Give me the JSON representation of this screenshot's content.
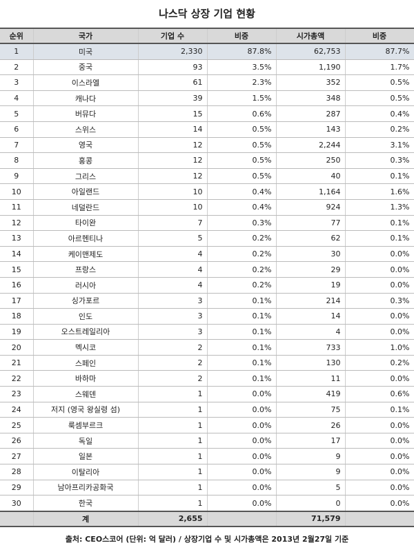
{
  "header": {
    "title": "나스닥 상장 기업 현황"
  },
  "table": {
    "columns": [
      "순위",
      "국가",
      "기업 수",
      "비중",
      "시가총액",
      "비중"
    ],
    "rows": [
      [
        "1",
        "미국",
        "2,330",
        "87.8%",
        "62,753",
        "87.7%"
      ],
      [
        "2",
        "중국",
        "93",
        "3.5%",
        "1,190",
        "1.7%"
      ],
      [
        "3",
        "이스라엘",
        "61",
        "2.3%",
        "352",
        "0.5%"
      ],
      [
        "4",
        "캐나다",
        "39",
        "1.5%",
        "348",
        "0.5%"
      ],
      [
        "5",
        "버뮤다",
        "15",
        "0.6%",
        "287",
        "0.4%"
      ],
      [
        "6",
        "스위스",
        "14",
        "0.5%",
        "143",
        "0.2%"
      ],
      [
        "7",
        "영국",
        "12",
        "0.5%",
        "2,244",
        "3.1%"
      ],
      [
        "8",
        "홍콩",
        "12",
        "0.5%",
        "250",
        "0.3%"
      ],
      [
        "9",
        "그리스",
        "12",
        "0.5%",
        "40",
        "0.1%"
      ],
      [
        "10",
        "아일랜드",
        "10",
        "0.4%",
        "1,164",
        "1.6%"
      ],
      [
        "11",
        "네덜란드",
        "10",
        "0.4%",
        "924",
        "1.3%"
      ],
      [
        "12",
        "타이완",
        "7",
        "0.3%",
        "77",
        "0.1%"
      ],
      [
        "13",
        "아르헨티나",
        "5",
        "0.2%",
        "62",
        "0.1%"
      ],
      [
        "14",
        "케이맨제도",
        "4",
        "0.2%",
        "30",
        "0.0%"
      ],
      [
        "15",
        "프랑스",
        "4",
        "0.2%",
        "29",
        "0.0%"
      ],
      [
        "16",
        "러시아",
        "4",
        "0.2%",
        "19",
        "0.0%"
      ],
      [
        "17",
        "싱가포르",
        "3",
        "0.1%",
        "214",
        "0.3%"
      ],
      [
        "18",
        "인도",
        "3",
        "0.1%",
        "14",
        "0.0%"
      ],
      [
        "19",
        "오스트레일리아",
        "3",
        "0.1%",
        "4",
        "0.0%"
      ],
      [
        "20",
        "멕시코",
        "2",
        "0.1%",
        "733",
        "1.0%"
      ],
      [
        "21",
        "스페인",
        "2",
        "0.1%",
        "130",
        "0.2%"
      ],
      [
        "22",
        "바하마",
        "2",
        "0.1%",
        "11",
        "0.0%"
      ],
      [
        "23",
        "스웨덴",
        "1",
        "0.0%",
        "419",
        "0.6%"
      ],
      [
        "24",
        "저지 (영국 왕실령 섬)",
        "1",
        "0.0%",
        "75",
        "0.1%"
      ],
      [
        "25",
        "룩셈부르크",
        "1",
        "0.0%",
        "26",
        "0.0%"
      ],
      [
        "26",
        "독일",
        "1",
        "0.0%",
        "17",
        "0.0%"
      ],
      [
        "27",
        "일본",
        "1",
        "0.0%",
        "9",
        "0.0%"
      ],
      [
        "28",
        "이탈리아",
        "1",
        "0.0%",
        "9",
        "0.0%"
      ],
      [
        "29",
        "남아프리카공화국",
        "1",
        "0.0%",
        "5",
        "0.0%"
      ],
      [
        "30",
        "한국",
        "1",
        "0.0%",
        "0",
        "0.0%"
      ]
    ],
    "total": {
      "label": "계",
      "count": "2,655",
      "cap": "71,579"
    }
  },
  "source": "출처: CEO스코어 (단위: 억 달러) / 상장기업 수 및 시가총액은 2013년 2월27일 기준"
}
